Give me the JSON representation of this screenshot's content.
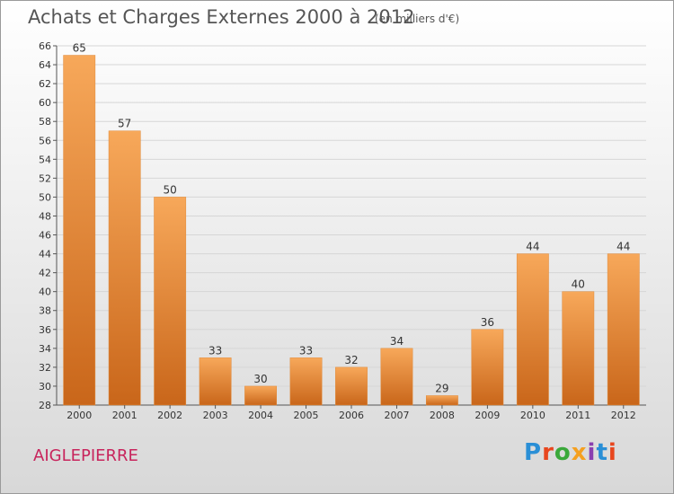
{
  "header": {
    "title": "Achats et Charges Externes 2000 à 2012",
    "unit": "(en milliers d'€)"
  },
  "footer": {
    "commune": "AIGLEPIERRE",
    "brand": "Proxiti",
    "brand_colors": [
      "#2a8fd6",
      "#e8461e",
      "#3aa83a",
      "#f5a020",
      "#8a3fb0",
      "#2a8fd6",
      "#e8461e"
    ]
  },
  "colors": {
    "bar_top": "#f7a85a",
    "bar_bottom": "#c9661a",
    "grid": "#d6d6d6"
  },
  "chart_data": {
    "type": "bar",
    "title": "Achats et Charges Externes 2000 à 2012",
    "subtitle": "(en milliers d'€)",
    "xlabel": "",
    "ylabel": "",
    "categories": [
      "2000",
      "2001",
      "2002",
      "2003",
      "2004",
      "2005",
      "2006",
      "2007",
      "2008",
      "2009",
      "2010",
      "2011",
      "2012"
    ],
    "values": [
      65,
      57,
      50,
      33,
      30,
      33,
      32,
      34,
      29,
      36,
      44,
      40,
      44
    ],
    "ylim": [
      28,
      66
    ],
    "ytick_step": 2,
    "grid": true,
    "legend": "none"
  }
}
